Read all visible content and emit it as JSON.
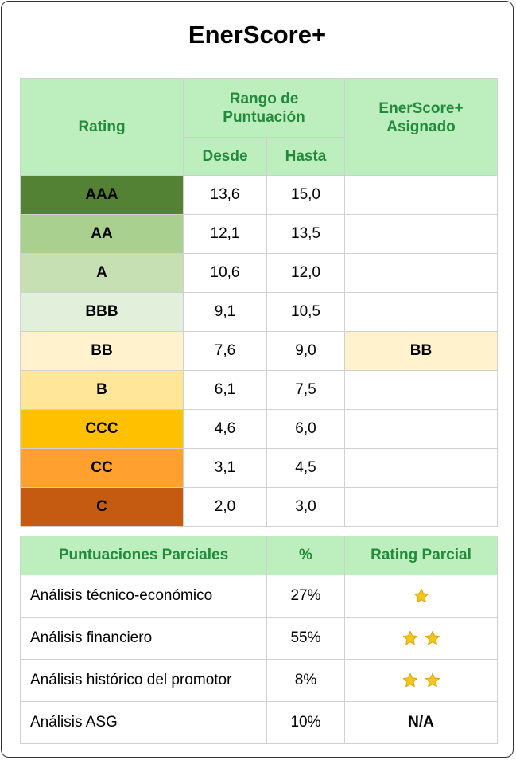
{
  "title": "EnerScore+",
  "rating_table": {
    "headers": {
      "rating": "Rating",
      "range": "Rango de Puntuación",
      "from": "Desde",
      "to": "Hasta",
      "assigned": "EnerScore+ Asignado"
    },
    "rows": [
      {
        "rating": "AAA",
        "from": "13,6",
        "to": "15,0",
        "assigned": "",
        "color": "#548235"
      },
      {
        "rating": "AA",
        "from": "12,1",
        "to": "13,5",
        "assigned": "",
        "color": "#a9d08e"
      },
      {
        "rating": "A",
        "from": "10,6",
        "to": "12,0",
        "assigned": "",
        "color": "#c6e0b4"
      },
      {
        "rating": "BBB",
        "from": "9,1",
        "to": "10,5",
        "assigned": "",
        "color": "#e2efda"
      },
      {
        "rating": "BB",
        "from": "7,6",
        "to": "9,0",
        "assigned": "BB",
        "color": "#fff2cc"
      },
      {
        "rating": "B",
        "from": "6,1",
        "to": "7,5",
        "assigned": "",
        "color": "#ffe699"
      },
      {
        "rating": "CCC",
        "from": "4,6",
        "to": "6,0",
        "assigned": "",
        "color": "#ffc000"
      },
      {
        "rating": "CC",
        "from": "3,1",
        "to": "4,5",
        "assigned": "",
        "color": "#ffa02f"
      },
      {
        "rating": "C",
        "from": "2,0",
        "to": "3,0",
        "assigned": "",
        "color": "#c55a11"
      }
    ],
    "assigned_highlight_color": "#fff2cc"
  },
  "partial_table": {
    "headers": {
      "label": "Puntuaciones Parciales",
      "pct": "%",
      "rating": "Rating Parcial"
    },
    "rows": [
      {
        "label": "Análisis técnico-económico",
        "pct": "27%",
        "stars": 1,
        "text": ""
      },
      {
        "label": "Análisis financiero",
        "pct": "55%",
        "stars": 2,
        "text": ""
      },
      {
        "label": "Análisis histórico del promotor",
        "pct": "8%",
        "stars": 2,
        "text": ""
      },
      {
        "label": "Análisis ASG",
        "pct": "10%",
        "stars": 0,
        "text": "N/A"
      }
    ]
  },
  "colors": {
    "header_bg": "#bdeebd",
    "header_text": "#238a3b",
    "star": "#f5c518"
  }
}
